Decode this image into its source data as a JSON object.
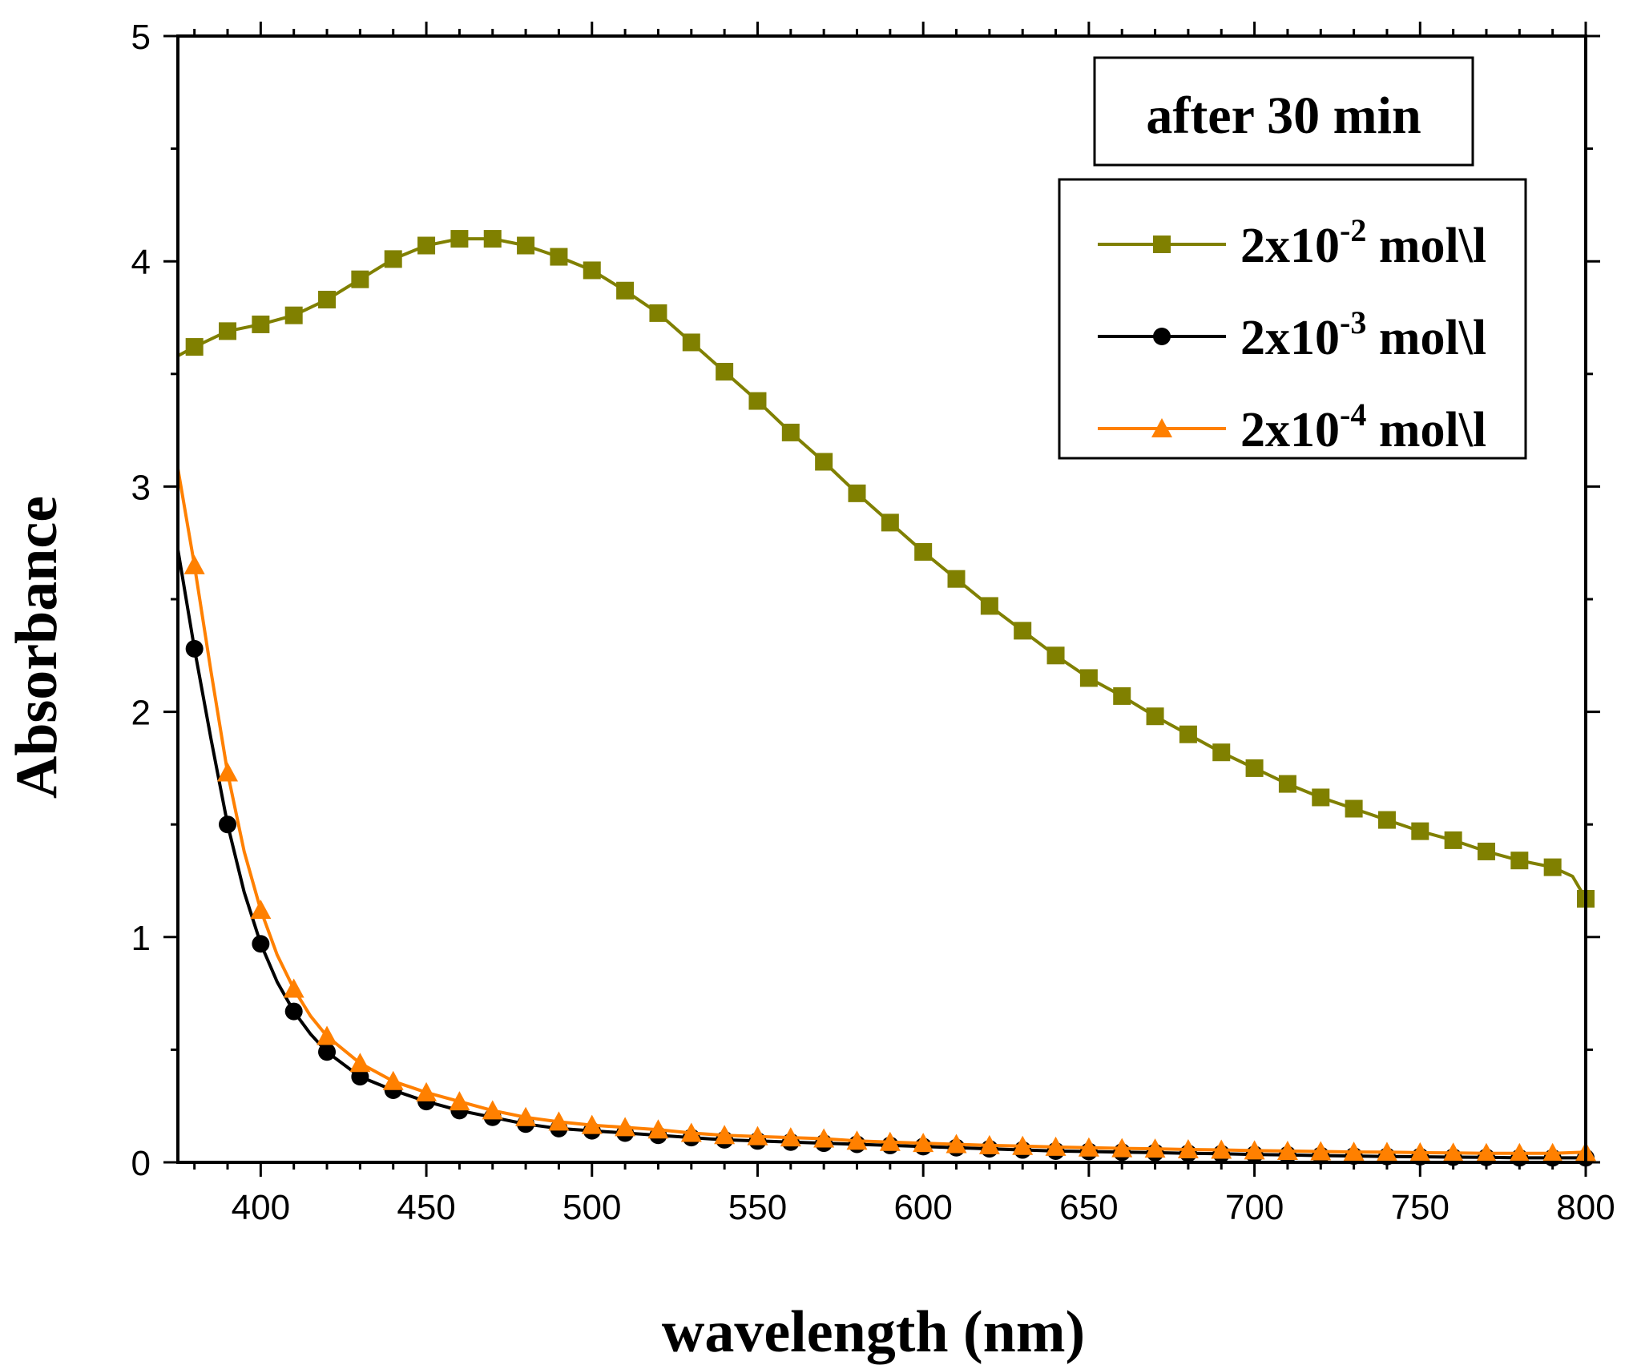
{
  "chart_data": {
    "type": "line",
    "title": "",
    "annotation": "after 30 min",
    "xlabel": "wavelength (nm)",
    "ylabel": "Absorbance",
    "xlim": [
      375,
      800
    ],
    "ylim": [
      0,
      5
    ],
    "xticks": [
      400,
      450,
      500,
      550,
      600,
      650,
      700,
      750,
      800
    ],
    "yticks": [
      0,
      1,
      2,
      3,
      4,
      5
    ],
    "grid": false,
    "legend_position": "top-right",
    "series": [
      {
        "name": "2x10-2 mol\\l",
        "label_base": "2x10",
        "label_exp": "-2",
        "label_unit": " mol\\l",
        "color": "#808000",
        "marker": "square",
        "line": [
          [
            375,
            3.58
          ],
          [
            380,
            3.62
          ],
          [
            390,
            3.69
          ],
          [
            400,
            3.72
          ],
          [
            410,
            3.76
          ],
          [
            420,
            3.83
          ],
          [
            430,
            3.92
          ],
          [
            440,
            4.01
          ],
          [
            450,
            4.07
          ],
          [
            460,
            4.1
          ],
          [
            470,
            4.1
          ],
          [
            480,
            4.07
          ],
          [
            490,
            4.02
          ],
          [
            500,
            3.96
          ],
          [
            510,
            3.87
          ],
          [
            520,
            3.77
          ],
          [
            530,
            3.64
          ],
          [
            540,
            3.51
          ],
          [
            550,
            3.38
          ],
          [
            560,
            3.24
          ],
          [
            570,
            3.11
          ],
          [
            580,
            2.97
          ],
          [
            590,
            2.84
          ],
          [
            600,
            2.71
          ],
          [
            610,
            2.59
          ],
          [
            620,
            2.47
          ],
          [
            630,
            2.36
          ],
          [
            640,
            2.25
          ],
          [
            650,
            2.15
          ],
          [
            660,
            2.07
          ],
          [
            670,
            1.98
          ],
          [
            680,
            1.9
          ],
          [
            690,
            1.82
          ],
          [
            700,
            1.75
          ],
          [
            710,
            1.68
          ],
          [
            720,
            1.62
          ],
          [
            730,
            1.57
          ],
          [
            740,
            1.52
          ],
          [
            750,
            1.47
          ],
          [
            760,
            1.43
          ],
          [
            770,
            1.38
          ],
          [
            780,
            1.34
          ],
          [
            790,
            1.31
          ],
          [
            796,
            1.27
          ],
          [
            800,
            1.17
          ]
        ],
        "markers": [
          [
            380,
            3.62
          ],
          [
            390,
            3.69
          ],
          [
            400,
            3.72
          ],
          [
            410,
            3.76
          ],
          [
            420,
            3.83
          ],
          [
            430,
            3.92
          ],
          [
            440,
            4.01
          ],
          [
            450,
            4.07
          ],
          [
            460,
            4.1
          ],
          [
            470,
            4.1
          ],
          [
            480,
            4.07
          ],
          [
            490,
            4.02
          ],
          [
            500,
            3.96
          ],
          [
            510,
            3.87
          ],
          [
            520,
            3.77
          ],
          [
            530,
            3.64
          ],
          [
            540,
            3.51
          ],
          [
            550,
            3.38
          ],
          [
            560,
            3.24
          ],
          [
            570,
            3.11
          ],
          [
            580,
            2.97
          ],
          [
            590,
            2.84
          ],
          [
            600,
            2.71
          ],
          [
            610,
            2.59
          ],
          [
            620,
            2.47
          ],
          [
            630,
            2.36
          ],
          [
            640,
            2.25
          ],
          [
            650,
            2.15
          ],
          [
            660,
            2.07
          ],
          [
            670,
            1.98
          ],
          [
            680,
            1.9
          ],
          [
            690,
            1.82
          ],
          [
            700,
            1.75
          ],
          [
            710,
            1.68
          ],
          [
            720,
            1.62
          ],
          [
            730,
            1.57
          ],
          [
            740,
            1.52
          ],
          [
            750,
            1.47
          ],
          [
            760,
            1.43
          ],
          [
            770,
            1.38
          ],
          [
            780,
            1.34
          ],
          [
            790,
            1.31
          ],
          [
            800,
            1.17
          ]
        ]
      },
      {
        "name": "2x10-3 mol\\l",
        "label_base": "2x10",
        "label_exp": "-3",
        "label_unit": " mol\\l",
        "color": "#000000",
        "marker": "circle",
        "line": [
          [
            375,
            2.72
          ],
          [
            380,
            2.28
          ],
          [
            385,
            1.88
          ],
          [
            390,
            1.5
          ],
          [
            395,
            1.2
          ],
          [
            400,
            0.97
          ],
          [
            405,
            0.8
          ],
          [
            410,
            0.67
          ],
          [
            415,
            0.57
          ],
          [
            420,
            0.49
          ],
          [
            430,
            0.38
          ],
          [
            440,
            0.32
          ],
          [
            450,
            0.27
          ],
          [
            460,
            0.23
          ],
          [
            470,
            0.2
          ],
          [
            480,
            0.17
          ],
          [
            490,
            0.15
          ],
          [
            500,
            0.14
          ],
          [
            510,
            0.13
          ],
          [
            520,
            0.12
          ],
          [
            530,
            0.11
          ],
          [
            540,
            0.1
          ],
          [
            550,
            0.095
          ],
          [
            560,
            0.09
          ],
          [
            570,
            0.085
          ],
          [
            580,
            0.08
          ],
          [
            590,
            0.075
          ],
          [
            600,
            0.07
          ],
          [
            610,
            0.065
          ],
          [
            620,
            0.06
          ],
          [
            630,
            0.055
          ],
          [
            640,
            0.05
          ],
          [
            650,
            0.048
          ],
          [
            660,
            0.045
          ],
          [
            670,
            0.043
          ],
          [
            680,
            0.04
          ],
          [
            690,
            0.038
          ],
          [
            700,
            0.035
          ],
          [
            710,
            0.033
          ],
          [
            720,
            0.03
          ],
          [
            730,
            0.028
          ],
          [
            740,
            0.026
          ],
          [
            750,
            0.025
          ],
          [
            760,
            0.023
          ],
          [
            770,
            0.022
          ],
          [
            780,
            0.02
          ],
          [
            790,
            0.02
          ],
          [
            800,
            0.02
          ]
        ],
        "markers": [
          [
            380,
            2.28
          ],
          [
            390,
            1.5
          ],
          [
            400,
            0.97
          ],
          [
            410,
            0.67
          ],
          [
            420,
            0.49
          ],
          [
            430,
            0.38
          ],
          [
            440,
            0.32
          ],
          [
            450,
            0.27
          ],
          [
            460,
            0.23
          ],
          [
            470,
            0.2
          ],
          [
            480,
            0.17
          ],
          [
            490,
            0.15
          ],
          [
            500,
            0.14
          ],
          [
            510,
            0.13
          ],
          [
            520,
            0.12
          ],
          [
            530,
            0.11
          ],
          [
            540,
            0.1
          ],
          [
            550,
            0.095
          ],
          [
            560,
            0.09
          ],
          [
            570,
            0.085
          ],
          [
            580,
            0.08
          ],
          [
            590,
            0.075
          ],
          [
            600,
            0.07
          ],
          [
            610,
            0.065
          ],
          [
            620,
            0.06
          ],
          [
            630,
            0.055
          ],
          [
            640,
            0.05
          ],
          [
            650,
            0.048
          ],
          [
            660,
            0.045
          ],
          [
            670,
            0.043
          ],
          [
            680,
            0.04
          ],
          [
            690,
            0.038
          ],
          [
            700,
            0.035
          ],
          [
            710,
            0.033
          ],
          [
            720,
            0.03
          ],
          [
            730,
            0.028
          ],
          [
            740,
            0.026
          ],
          [
            750,
            0.025
          ],
          [
            760,
            0.023
          ],
          [
            770,
            0.022
          ],
          [
            780,
            0.02
          ],
          [
            790,
            0.02
          ],
          [
            800,
            0.02
          ]
        ]
      },
      {
        "name": "2x10-4 mol\\l",
        "label_base": "2x10",
        "label_exp": "-4",
        "label_unit": " mol\\l",
        "color": "#FF8000",
        "marker": "triangle",
        "line": [
          [
            375,
            3.08
          ],
          [
            380,
            2.65
          ],
          [
            385,
            2.18
          ],
          [
            390,
            1.73
          ],
          [
            395,
            1.38
          ],
          [
            400,
            1.12
          ],
          [
            405,
            0.92
          ],
          [
            410,
            0.77
          ],
          [
            415,
            0.65
          ],
          [
            420,
            0.56
          ],
          [
            430,
            0.44
          ],
          [
            440,
            0.36
          ],
          [
            450,
            0.31
          ],
          [
            460,
            0.27
          ],
          [
            470,
            0.23
          ],
          [
            480,
            0.2
          ],
          [
            490,
            0.18
          ],
          [
            500,
            0.165
          ],
          [
            510,
            0.155
          ],
          [
            520,
            0.145
          ],
          [
            530,
            0.13
          ],
          [
            540,
            0.12
          ],
          [
            550,
            0.115
          ],
          [
            560,
            0.11
          ],
          [
            570,
            0.105
          ],
          [
            580,
            0.095
          ],
          [
            590,
            0.09
          ],
          [
            600,
            0.085
          ],
          [
            610,
            0.08
          ],
          [
            620,
            0.075
          ],
          [
            630,
            0.072
          ],
          [
            640,
            0.068
          ],
          [
            650,
            0.065
          ],
          [
            660,
            0.062
          ],
          [
            670,
            0.06
          ],
          [
            680,
            0.057
          ],
          [
            690,
            0.055
          ],
          [
            700,
            0.052
          ],
          [
            710,
            0.05
          ],
          [
            720,
            0.048
          ],
          [
            730,
            0.046
          ],
          [
            740,
            0.045
          ],
          [
            750,
            0.043
          ],
          [
            760,
            0.042
          ],
          [
            770,
            0.04
          ],
          [
            780,
            0.04
          ],
          [
            790,
            0.04
          ],
          [
            800,
            0.045
          ]
        ],
        "markers": [
          [
            380,
            2.65
          ],
          [
            390,
            1.73
          ],
          [
            400,
            1.12
          ],
          [
            410,
            0.77
          ],
          [
            420,
            0.56
          ],
          [
            430,
            0.44
          ],
          [
            440,
            0.36
          ],
          [
            450,
            0.31
          ],
          [
            460,
            0.27
          ],
          [
            470,
            0.23
          ],
          [
            480,
            0.2
          ],
          [
            490,
            0.18
          ],
          [
            500,
            0.165
          ],
          [
            510,
            0.155
          ],
          [
            520,
            0.145
          ],
          [
            530,
            0.13
          ],
          [
            540,
            0.12
          ],
          [
            550,
            0.115
          ],
          [
            560,
            0.11
          ],
          [
            570,
            0.105
          ],
          [
            580,
            0.095
          ],
          [
            590,
            0.09
          ],
          [
            600,
            0.085
          ],
          [
            610,
            0.08
          ],
          [
            620,
            0.075
          ],
          [
            630,
            0.072
          ],
          [
            640,
            0.068
          ],
          [
            650,
            0.065
          ],
          [
            660,
            0.062
          ],
          [
            670,
            0.06
          ],
          [
            680,
            0.057
          ],
          [
            690,
            0.055
          ],
          [
            700,
            0.052
          ],
          [
            710,
            0.05
          ],
          [
            720,
            0.048
          ],
          [
            730,
            0.046
          ],
          [
            740,
            0.045
          ],
          [
            750,
            0.043
          ],
          [
            760,
            0.042
          ],
          [
            770,
            0.04
          ],
          [
            780,
            0.04
          ],
          [
            790,
            0.04
          ],
          [
            800,
            0.045
          ]
        ]
      }
    ]
  }
}
